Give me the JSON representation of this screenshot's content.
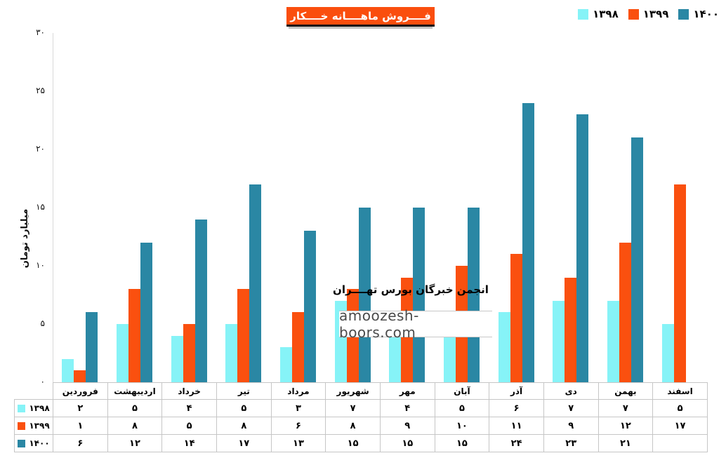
{
  "page": {
    "background": "#ffffff"
  },
  "title": {
    "text": "فــــروش ماهــــانه خــــکار",
    "bg_color": "#FA4E0E",
    "text_color": "#ffffff"
  },
  "legend": {
    "position": "top-right",
    "items": [
      {
        "label": "۱۳۹۸",
        "color": "#86F3F7"
      },
      {
        "label": "۱۳۹۹",
        "color": "#FA500F"
      },
      {
        "label": "۱۴۰۰",
        "color": "#2A87A4"
      }
    ]
  },
  "watermark": {
    "line1": "انجمن خبرگان بورس تهــــران",
    "line2": "amoozesh-boors.com"
  },
  "chart_data": {
    "type": "bar",
    "title": "فروش ماهانه خکار",
    "ylabel": "میلیارد تومان",
    "xlabel": "",
    "ylim": [
      0,
      30
    ],
    "ytick_values": [
      0,
      5,
      10,
      15,
      20,
      25,
      30
    ],
    "ytick_labels": [
      "۰",
      "۵",
      "۱۰",
      "۱۵",
      "۲۰",
      "۲۵",
      "۳۰"
    ],
    "grid": false,
    "has_data_table": true,
    "categories": [
      "فروردین",
      "اردیبهشت",
      "خرداد",
      "تیر",
      "مرداد",
      "شهریور",
      "مهر",
      "آبان",
      "آذر",
      "دی",
      "بهمن",
      "اسفند"
    ],
    "series": [
      {
        "name": "۱۳۹۸",
        "year": 1398,
        "color": "#86F3F7",
        "values": [
          2,
          5,
          4,
          5,
          3,
          7,
          4,
          5,
          6,
          7,
          7,
          5
        ]
      },
      {
        "name": "۱۳۹۹",
        "year": 1399,
        "color": "#FA500F",
        "values": [
          1,
          8,
          5,
          8,
          6,
          8,
          9,
          10,
          11,
          9,
          12,
          17
        ]
      },
      {
        "name": "۱۴۰۰",
        "year": 1400,
        "color": "#2A87A4",
        "values": [
          6,
          12,
          14,
          17,
          13,
          15,
          15,
          15,
          24,
          23,
          21,
          null
        ]
      }
    ]
  }
}
